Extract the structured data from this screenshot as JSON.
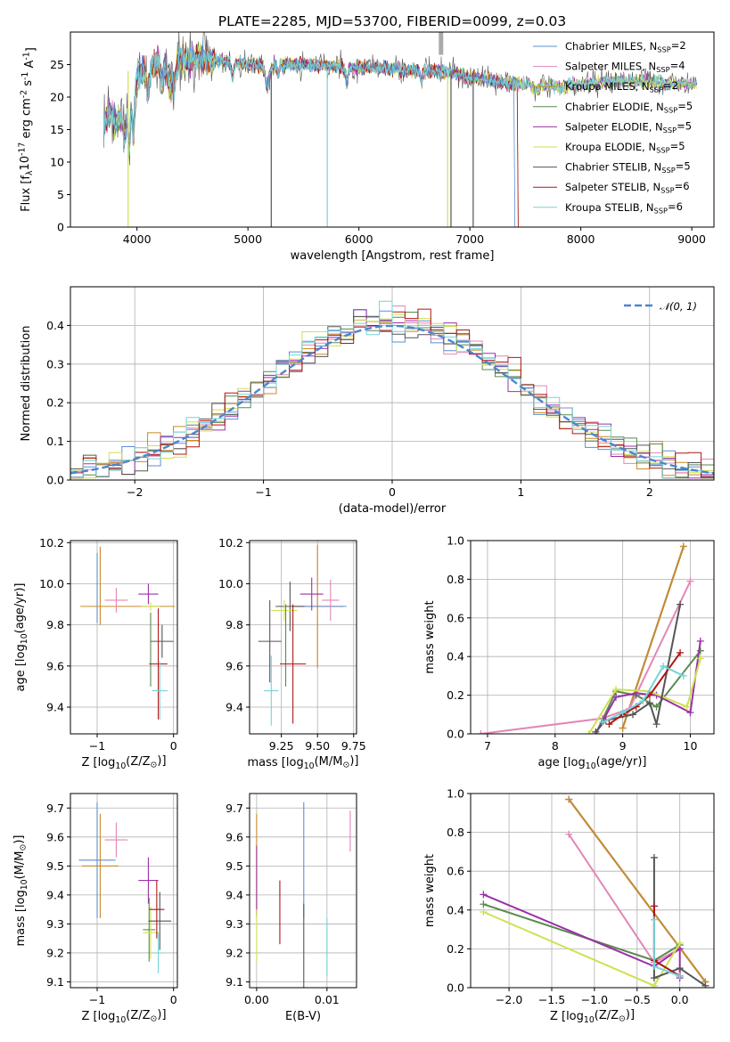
{
  "series_styles": [
    {
      "label": "Chabrier MILES, N<SSP>=2",
      "color": "#5b8fd6"
    },
    {
      "label": "Salpeter MILES, N<SSP>=4",
      "color": "#e386b8"
    },
    {
      "label": "Kroupa MILES, N<SSP>=2",
      "color": "#c98a2a"
    },
    {
      "label": "Chabrier ELODIE, N<SSP>=5",
      "color": "#5a8a4e"
    },
    {
      "label": "Salpeter ELODIE, N<SSP>=5",
      "color": "#9b30a8"
    },
    {
      "label": "Kroupa ELODIE, N<SSP>=5",
      "color": "#cfe052"
    },
    {
      "label": "Chabrier STELIB, N<SSP>=5",
      "color": "#555555"
    },
    {
      "label": "Salpeter STELIB, N<SSP>=6",
      "color": "#b01515"
    },
    {
      "label": "Kroupa STELIB, N<SSP>=6",
      "color": "#74d4d8"
    }
  ],
  "chart_data": [
    {
      "id": "spectrum",
      "type": "line",
      "title": "PLATE=2285, MJD=53700, FIBERID=0099, z=0.03",
      "xlabel": "wavelength [Angstrom, rest frame]",
      "ylabel": "Flux [f<λ>10<^-17> erg cm<^-2> s<^-1> A<^-1>]",
      "xlim": [
        3400,
        9200
      ],
      "ylim": [
        0,
        30
      ],
      "xticks": [
        4000,
        5000,
        6000,
        7000,
        8000,
        9000
      ],
      "yticks": [
        0,
        5,
        10,
        15,
        20,
        25
      ],
      "grid": false,
      "legend": "top-right",
      "legend_entries": [
        "Chabrier MILES, N<SSP>=2",
        "Salpeter MILES, N<SSP>=4",
        "Kroupa MILES, N<SSP>=2",
        "Chabrier ELODIE, N<SSP>=5",
        "Salpeter ELODIE, N<SSP>=5",
        "Kroupa ELODIE, N<SSP>=5",
        "Chabrier STELIB, N<SSP>=5",
        "Salpeter STELIB, N<SSP>=6",
        "Kroupa STELIB, N<SSP>=6"
      ],
      "envelope": {
        "x": [
          3700,
          3800,
          3900,
          4000,
          4100,
          4300,
          4500,
          4800,
          5000,
          5300,
          5600,
          5900,
          6200,
          6500,
          6800,
          7000,
          7200,
          7400,
          7600,
          7800,
          8000,
          8300,
          8600,
          8900,
          9050
        ],
        "y": [
          16,
          19,
          20,
          23,
          24.5,
          25.5,
          26,
          25.5,
          25,
          25,
          25,
          24.5,
          24.5,
          24,
          24,
          23,
          22.5,
          22,
          22,
          21.5,
          22,
          22.5,
          22.5,
          22,
          22
        ]
      }
    },
    {
      "id": "residuals",
      "type": "histogram",
      "xlabel": "(data-model)/error",
      "ylabel": "Normed distribution",
      "xlim": [
        -2.5,
        2.5
      ],
      "ylim": [
        0,
        0.5
      ],
      "xticks": [
        -2,
        -1,
        0,
        1,
        2
      ],
      "yticks": [
        0.0,
        0.1,
        0.2,
        0.3,
        0.4
      ],
      "grid": true,
      "legend": "top-right",
      "legend_entries": [
        "𝒩(0, 1)"
      ],
      "normal_curve": {
        "mean": 0,
        "sigma": 1
      }
    },
    {
      "id": "age-vs-Z",
      "type": "scatter",
      "xlabel": "Z [log<10>(Z/Z<⊙>)]",
      "ylabel": "age  [log<10>(age/yr)]",
      "xlim": [
        -1.35,
        0.05
      ],
      "ylim": [
        9.27,
        10.21
      ],
      "xticks": [
        -1,
        0
      ],
      "yticks": [
        9.4,
        9.6,
        9.8,
        10.0,
        10.2
      ],
      "grid": true,
      "points": [
        {
          "s": 0,
          "x": -1.0,
          "y": 9.98,
          "xe": 0,
          "ye": 0.17
        },
        {
          "s": 2,
          "x": -0.96,
          "y": 9.99,
          "xe": 0,
          "ye": 0.19
        },
        {
          "s": 2,
          "x": -0.6,
          "y": 9.89,
          "xe": 0.62,
          "ye": 0
        },
        {
          "s": 1,
          "x": -0.75,
          "y": 9.92,
          "xe": 0.15,
          "ye": 0.06
        },
        {
          "s": 4,
          "x": -0.33,
          "y": 9.95,
          "xe": 0.13,
          "ye": 0.05
        },
        {
          "s": 5,
          "x": -0.3,
          "y": 9.89,
          "xe": 0.12,
          "ye": 0.02
        },
        {
          "s": 3,
          "x": -0.3,
          "y": 9.68,
          "xe": 0,
          "ye": 0.18
        },
        {
          "s": 6,
          "x": -0.15,
          "y": 9.72,
          "xe": 0.15,
          "ye": 0.08
        },
        {
          "s": 7,
          "x": -0.2,
          "y": 9.61,
          "xe": 0.12,
          "ye": 0.27
        },
        {
          "s": 8,
          "x": -0.18,
          "y": 9.48,
          "xe": 0.1,
          "ye": 0.14
        }
      ]
    },
    {
      "id": "age-vs-mass",
      "type": "scatter",
      "xlabel": "mass [log<10>(M/M<⊙>)]",
      "ylabel": "",
      "xlim": [
        9.03,
        9.77
      ],
      "ylim": [
        9.27,
        10.21
      ],
      "xticks": [
        9.25,
        9.5,
        9.75
      ],
      "yticks": [
        9.4,
        9.6,
        9.8,
        10.0,
        10.2
      ],
      "grid": true,
      "points": [
        {
          "s": 2,
          "x": 9.5,
          "y": 9.89,
          "xe": 0.18,
          "ye": 0.3
        },
        {
          "s": 0,
          "x": 9.52,
          "y": 9.89,
          "xe": 0.18,
          "ye": 0
        },
        {
          "s": 1,
          "x": 9.59,
          "y": 9.92,
          "xe": 0.06,
          "ye": 0.1
        },
        {
          "s": 4,
          "x": 9.46,
          "y": 9.95,
          "xe": 0.08,
          "ye": 0.08
        },
        {
          "s": 6,
          "x": 9.31,
          "y": 9.89,
          "xe": 0.1,
          "ye": 0.12
        },
        {
          "s": 5,
          "x": 9.27,
          "y": 9.87,
          "xe": 0.09,
          "ye": 0.05
        },
        {
          "s": 3,
          "x": 9.28,
          "y": 9.7,
          "xe": 0,
          "ye": 0.2
        },
        {
          "s": 6,
          "x": 9.17,
          "y": 9.72,
          "xe": 0.08,
          "ye": 0.2
        },
        {
          "s": 7,
          "x": 9.33,
          "y": 9.61,
          "xe": 0.09,
          "ye": 0.29
        },
        {
          "s": 8,
          "x": 9.18,
          "y": 9.48,
          "xe": 0.05,
          "ye": 0.17
        }
      ]
    },
    {
      "id": "massweight-vs-age",
      "type": "line",
      "xlabel": "age  [log<10>(age/yr)]",
      "ylabel": "mass weight",
      "xlim": [
        6.75,
        10.35
      ],
      "ylim": [
        0.0,
        1.0
      ],
      "xticks": [
        7,
        8,
        9,
        10
      ],
      "yticks": [
        0.0,
        0.2,
        0.4,
        0.6,
        0.8,
        1.0
      ],
      "grid": true,
      "series": [
        {
          "s": 0,
          "x": [
            9.0,
            9.9
          ],
          "y": [
            0.03,
            0.97
          ]
        },
        {
          "s": 2,
          "x": [
            9.0,
            9.9
          ],
          "y": [
            0.03,
            0.97
          ]
        },
        {
          "s": 1,
          "x": [
            6.9,
            8.7,
            9.1,
            10.0
          ],
          "y": [
            0.0,
            0.08,
            0.13,
            0.79
          ]
        },
        {
          "s": 3,
          "x": [
            8.6,
            8.9,
            9.2,
            9.5,
            10.15
          ],
          "y": [
            0.0,
            0.22,
            0.2,
            0.14,
            0.43
          ]
        },
        {
          "s": 4,
          "x": [
            8.6,
            8.9,
            9.2,
            9.5,
            10.0,
            10.15
          ],
          "y": [
            0.0,
            0.19,
            0.21,
            0.2,
            0.11,
            0.48
          ]
        },
        {
          "s": 5,
          "x": [
            8.5,
            8.9,
            9.4,
            9.95,
            10.15
          ],
          "y": [
            0.0,
            0.23,
            0.22,
            0.14,
            0.39
          ]
        },
        {
          "s": 6,
          "x": [
            8.6,
            8.75,
            9.15,
            9.4,
            9.5,
            9.85
          ],
          "y": [
            0.01,
            0.07,
            0.1,
            0.16,
            0.05,
            0.67
          ]
        },
        {
          "s": 7,
          "x": [
            8.8,
            9.0,
            9.2,
            9.4,
            9.85
          ],
          "y": [
            0.05,
            0.1,
            0.14,
            0.2,
            0.42
          ]
        },
        {
          "s": 8,
          "x": [
            8.7,
            9.0,
            9.3,
            9.6,
            9.9
          ],
          "y": [
            0.06,
            0.11,
            0.17,
            0.35,
            0.3
          ]
        }
      ]
    },
    {
      "id": "mass-vs-Z",
      "type": "scatter",
      "xlabel": "Z [log<10>(Z/Z<⊙>)]",
      "ylabel": "mass [log<10>(M/M<⊙>)]",
      "xlim": [
        -1.35,
        0.05
      ],
      "ylim": [
        9.08,
        9.75
      ],
      "xticks": [
        -1,
        0
      ],
      "yticks": [
        9.1,
        9.2,
        9.3,
        9.4,
        9.5,
        9.6,
        9.7
      ],
      "grid": true,
      "points": [
        {
          "s": 0,
          "x": -1.0,
          "y": 9.52,
          "xe": 0.24,
          "ye": 0.2
        },
        {
          "s": 2,
          "x": -0.96,
          "y": 9.5,
          "xe": 0.24,
          "ye": 0.18
        },
        {
          "s": 1,
          "x": -0.75,
          "y": 9.59,
          "xe": 0.15,
          "ye": 0.06
        },
        {
          "s": 4,
          "x": -0.33,
          "y": 9.45,
          "xe": 0.13,
          "ye": 0.08
        },
        {
          "s": 3,
          "x": -0.32,
          "y": 9.28,
          "xe": 0.08,
          "ye": 0.11
        },
        {
          "s": 5,
          "x": -0.3,
          "y": 9.27,
          "xe": 0.1,
          "ye": 0.09
        },
        {
          "s": 6,
          "x": -0.18,
          "y": 9.31,
          "xe": 0.15,
          "ye": 0.1
        },
        {
          "s": 7,
          "x": -0.22,
          "y": 9.35,
          "xe": 0.1,
          "ye": 0.1
        },
        {
          "s": 8,
          "x": -0.2,
          "y": 9.2,
          "xe": 0.08,
          "ye": 0.07
        }
      ]
    },
    {
      "id": "mass-vs-ebv",
      "type": "scatter",
      "xlabel": "E(B-V)",
      "ylabel": "",
      "xlim": [
        -0.001,
        0.0142
      ],
      "ylim": [
        9.08,
        9.75
      ],
      "xticks": [
        0.0,
        0.01
      ],
      "yticks": [
        9.1,
        9.2,
        9.3,
        9.4,
        9.5,
        9.6,
        9.7
      ],
      "grid": true,
      "points": [
        {
          "s": 2,
          "x": 0.0,
          "y": 9.5,
          "xe": 0,
          "ye": 0.18
        },
        {
          "s": 4,
          "x": 0.0,
          "y": 9.45,
          "xe": 0,
          "ye": 0.12
        },
        {
          "s": 5,
          "x": 0.0,
          "y": 9.26,
          "xe": 0,
          "ye": 0.09
        },
        {
          "s": 7,
          "x": 0.0033,
          "y": 9.34,
          "xe": 0,
          "ye": 0.11
        },
        {
          "s": 0,
          "x": 0.0067,
          "y": 9.52,
          "xe": 0,
          "ye": 0.2
        },
        {
          "s": 6,
          "x": 0.0067,
          "y": 9.22,
          "xe": 0,
          "ye": 0.15
        },
        {
          "s": 8,
          "x": 0.01,
          "y": 9.22,
          "xe": 0,
          "ye": 0.1
        },
        {
          "s": 1,
          "x": 0.0133,
          "y": 9.62,
          "xe": 0,
          "ye": 0.07
        }
      ]
    },
    {
      "id": "massweight-vs-Z",
      "type": "line",
      "xlabel": "Z [log<10>(Z/Z<⊙>)]",
      "ylabel": "mass weight",
      "xlim": [
        -2.45,
        0.4
      ],
      "ylim": [
        0.0,
        1.0
      ],
      "xticks": [
        -2.0,
        -1.5,
        -1.0,
        -0.5,
        0.0
      ],
      "yticks": [
        0.0,
        0.2,
        0.4,
        0.6,
        0.8,
        1.0
      ],
      "grid": true,
      "series": [
        {
          "s": 0,
          "x": [
            -1.3,
            0.3
          ],
          "y": [
            0.97,
            0.03
          ]
        },
        {
          "s": 2,
          "x": [
            -1.3,
            0.3
          ],
          "y": [
            0.97,
            0.03
          ]
        },
        {
          "s": 1,
          "x": [
            -1.3,
            -0.3,
            0.0
          ],
          "y": [
            0.79,
            0.13,
            0.2
          ]
        },
        {
          "s": 3,
          "x": [
            -2.3,
            -0.3,
            0.0
          ],
          "y": [
            0.43,
            0.14,
            0.22
          ]
        },
        {
          "s": 4,
          "x": [
            -2.3,
            -0.3,
            0.0,
            0.0
          ],
          "y": [
            0.48,
            0.11,
            0.2,
            0.05
          ]
        },
        {
          "s": 5,
          "x": [
            -2.3,
            -0.3,
            0.0
          ],
          "y": [
            0.39,
            0.01,
            0.23
          ]
        },
        {
          "s": 6,
          "x": [
            -0.3,
            -0.3,
            0.0,
            0.3
          ],
          "y": [
            0.67,
            0.05,
            0.1,
            0.01
          ]
        },
        {
          "s": 7,
          "x": [
            -0.3,
            -0.3,
            0.0
          ],
          "y": [
            0.42,
            0.14,
            0.06
          ]
        },
        {
          "s": 8,
          "x": [
            -0.3,
            -0.3,
            0.0
          ],
          "y": [
            0.35,
            0.11,
            0.06
          ]
        }
      ]
    }
  ]
}
